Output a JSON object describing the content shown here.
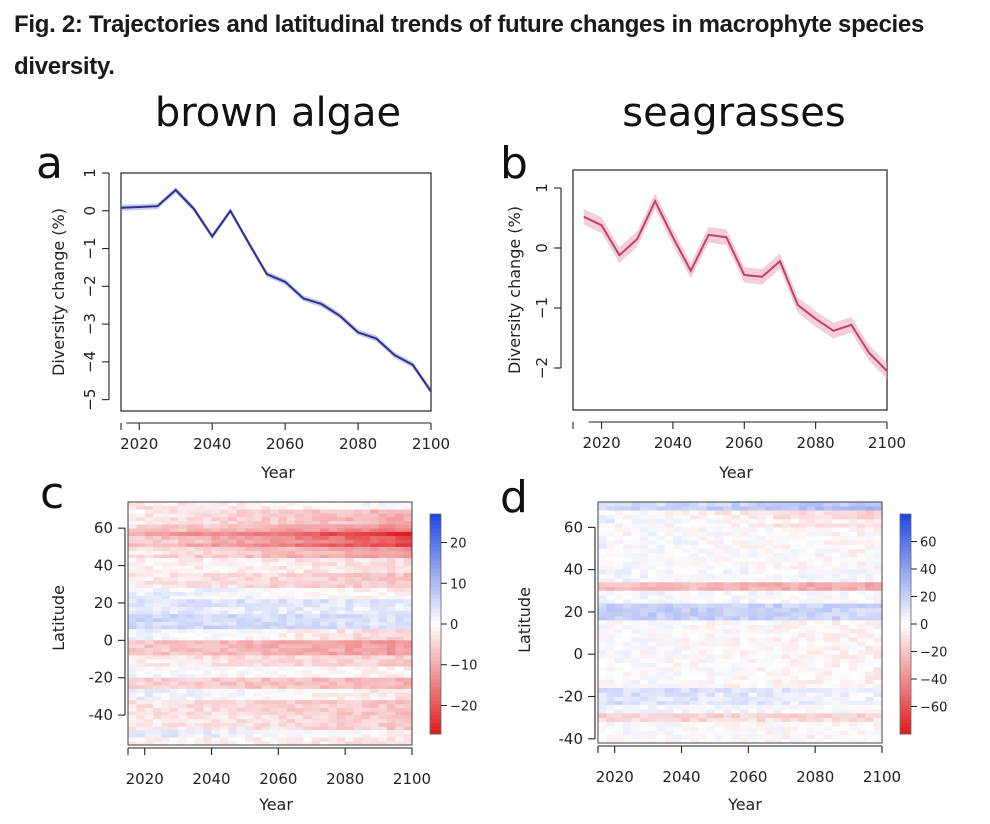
{
  "figure": {
    "caption": "Fig. 2: Trajectories and latitudinal trends of future changes in macrophyte species diversity."
  },
  "colors": {
    "brown_line": "#2b2f8f",
    "seagrass_line": "#c4406a",
    "heat_pos": "#2046e0",
    "heat_neg": "#e0191e"
  },
  "chart_data": [
    {
      "panel": "a",
      "type": "line",
      "title": "brown algae",
      "xlabel": "Year",
      "ylabel": "Diversity change (%)",
      "xlim": [
        2015,
        2100
      ],
      "ylim": [
        -5.3,
        1.0
      ],
      "xticks": [
        2020,
        2040,
        2060,
        2080,
        2100
      ],
      "yticks": [
        -5,
        -4,
        -3,
        -2,
        -1,
        0,
        1
      ],
      "x": [
        2015,
        2025,
        2030,
        2035,
        2040,
        2045,
        2050,
        2055,
        2060,
        2065,
        2070,
        2075,
        2080,
        2085,
        2090,
        2095,
        2100
      ],
      "series": [
        {
          "name": "brown algae",
          "values": [
            0.08,
            0.12,
            0.55,
            0.05,
            -0.68,
            0.0,
            -0.85,
            -1.68,
            -1.88,
            -2.32,
            -2.47,
            -2.78,
            -3.22,
            -3.38,
            -3.82,
            -4.08,
            -4.78
          ],
          "band": 0.08
        }
      ]
    },
    {
      "panel": "b",
      "type": "line",
      "title": "seagrasses",
      "xlabel": "Year",
      "ylabel": "Diversity change (%)",
      "xlim": [
        2012,
        2100
      ],
      "ylim": [
        -2.7,
        1.3
      ],
      "xticks": [
        2020,
        2040,
        2060,
        2080,
        2100
      ],
      "yticks": [
        -2,
        -1,
        0,
        1
      ],
      "x": [
        2015,
        2020,
        2025,
        2030,
        2035,
        2040,
        2045,
        2050,
        2055,
        2060,
        2065,
        2070,
        2075,
        2080,
        2085,
        2090,
        2095,
        2100
      ],
      "series": [
        {
          "name": "seagrasses",
          "values": [
            0.52,
            0.38,
            -0.12,
            0.15,
            0.78,
            0.18,
            -0.38,
            0.22,
            0.18,
            -0.45,
            -0.48,
            -0.22,
            -0.95,
            -1.18,
            -1.38,
            -1.28,
            -1.75,
            -2.05
          ],
          "band": 0.13
        }
      ]
    },
    {
      "panel": "c",
      "type": "heatmap",
      "xlabel": "Year",
      "ylabel": "Latitude",
      "xlim": [
        2015,
        2100
      ],
      "ylim": [
        -56,
        74
      ],
      "xticks": [
        2020,
        2040,
        2060,
        2080,
        2100
      ],
      "yticks": [
        -40,
        -20,
        0,
        20,
        40,
        60
      ],
      "colorbar": {
        "min": -27,
        "max": 27,
        "ticks": [
          20,
          10,
          0,
          -10,
          -20
        ]
      },
      "latitude_bands": [
        {
          "lat": [
            70,
            74
          ],
          "start": -2,
          "end": 2
        },
        {
          "lat": [
            62,
            70
          ],
          "start": -2,
          "end": -9
        },
        {
          "lat": [
            58,
            62
          ],
          "start": -4,
          "end": -14
        },
        {
          "lat": [
            50,
            58
          ],
          "start": -6,
          "end": -22
        },
        {
          "lat": [
            44,
            50
          ],
          "start": -3,
          "end": -12
        },
        {
          "lat": [
            36,
            44
          ],
          "start": -1,
          "end": -4
        },
        {
          "lat": [
            28,
            36
          ],
          "start": -2,
          "end": -7
        },
        {
          "lat": [
            22,
            28
          ],
          "start": 3,
          "end": -2
        },
        {
          "lat": [
            14,
            22
          ],
          "start": 4,
          "end": 3
        },
        {
          "lat": [
            6,
            14
          ],
          "start": 6,
          "end": 4
        },
        {
          "lat": [
            0,
            6
          ],
          "start": 2,
          "end": -5
        },
        {
          "lat": [
            -8,
            0
          ],
          "start": -6,
          "end": -12
        },
        {
          "lat": [
            -14,
            -8
          ],
          "start": -2,
          "end": -6
        },
        {
          "lat": [
            -20,
            -14
          ],
          "start": 1,
          "end": -2
        },
        {
          "lat": [
            -26,
            -20
          ],
          "start": -5,
          "end": -9
        },
        {
          "lat": [
            -32,
            -26
          ],
          "start": 3,
          "end": -3
        },
        {
          "lat": [
            -40,
            -32
          ],
          "start": -3,
          "end": -7
        },
        {
          "lat": [
            -48,
            -40
          ],
          "start": -2,
          "end": -6
        },
        {
          "lat": [
            -52,
            -48
          ],
          "start": 4,
          "end": -1
        },
        {
          "lat": [
            -56,
            -52
          ],
          "start": -1,
          "end": -3
        }
      ]
    },
    {
      "panel": "d",
      "type": "heatmap",
      "xlabel": "Year",
      "ylabel": "Latitude",
      "xlim": [
        2015,
        2100
      ],
      "ylim": [
        -42,
        72
      ],
      "xticks": [
        2020,
        2040,
        2060,
        2080,
        2100
      ],
      "yticks": [
        -40,
        -20,
        0,
        20,
        40,
        60
      ],
      "colorbar": {
        "min": -80,
        "max": 80,
        "ticks": [
          60,
          40,
          20,
          0,
          -20,
          -40,
          -60
        ]
      },
      "latitude_bands": [
        {
          "lat": [
            68,
            72
          ],
          "start": 12,
          "end": 25
        },
        {
          "lat": [
            60,
            68
          ],
          "start": 4,
          "end": -12
        },
        {
          "lat": [
            40,
            60
          ],
          "start": 2,
          "end": -2
        },
        {
          "lat": [
            34,
            40
          ],
          "start": 3,
          "end": 1
        },
        {
          "lat": [
            30,
            34
          ],
          "start": -22,
          "end": -30
        },
        {
          "lat": [
            24,
            30
          ],
          "start": 4,
          "end": 0
        },
        {
          "lat": [
            16,
            24
          ],
          "start": 22,
          "end": 18
        },
        {
          "lat": [
            -16,
            16
          ],
          "start": 1,
          "end": -4
        },
        {
          "lat": [
            -24,
            -16
          ],
          "start": 14,
          "end": 5
        },
        {
          "lat": [
            -28,
            -24
          ],
          "start": 3,
          "end": 1
        },
        {
          "lat": [
            -32,
            -28
          ],
          "start": -15,
          "end": -12
        },
        {
          "lat": [
            -42,
            -32
          ],
          "start": 1,
          "end": -2
        }
      ]
    }
  ]
}
